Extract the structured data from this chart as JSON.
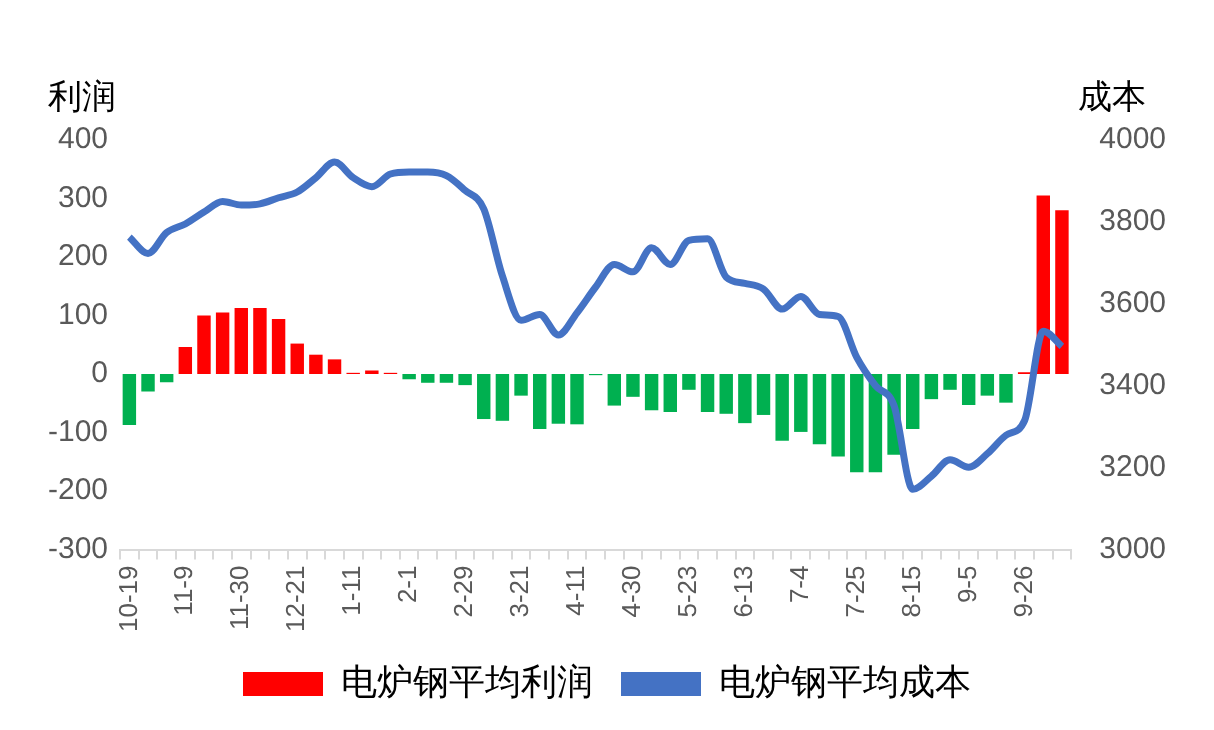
{
  "chart_data": {
    "type": "bar",
    "ylabel": "利润",
    "y2label": "成本",
    "categories": [
      "10-19",
      null,
      null,
      "11-9",
      null,
      null,
      "11-30",
      null,
      null,
      "12-21",
      null,
      null,
      "1-11",
      null,
      null,
      "2-1",
      null,
      null,
      "2-29",
      null,
      null,
      "3-21",
      null,
      null,
      "4-11",
      null,
      null,
      "4-30",
      null,
      null,
      "5-23",
      null,
      null,
      "6-13",
      null,
      null,
      "7-4",
      null,
      null,
      "7-25",
      null,
      null,
      "8-15",
      null,
      null,
      "9-5",
      null,
      null,
      "9-26",
      null,
      null
    ],
    "series": [
      {
        "name": "电炉钢平均利润",
        "color": "#ff0000",
        "colors": [
          "#00b050",
          "#00b050",
          "#00b050",
          "#ff0000",
          "#ff0000",
          "#ff0000",
          "#ff0000",
          "#ff0000",
          "#ff0000",
          "#ff0000",
          "#ff0000",
          "#ff0000",
          "#ff0000",
          "#ff0000",
          "#ff0000",
          "#00b050",
          "#00b050",
          "#00b050",
          "#00b050",
          "#00b050",
          "#00b050",
          "#00b050",
          "#00b050",
          "#00b050",
          "#00b050",
          "#00b050",
          "#00b050",
          "#00b050",
          "#00b050",
          "#00b050",
          "#00b050",
          "#00b050",
          "#00b050",
          "#00b050",
          "#00b050",
          "#00b050",
          "#00b050",
          "#00b050",
          "#00b050",
          "#00b050",
          "#00b050",
          "#00b050",
          "#00b050",
          "#00b050",
          "#00b050",
          "#00b050",
          "#00b050",
          "#00b050",
          "#ff0000",
          "#ff0000",
          "#ff0000"
        ],
        "values": [
          -87,
          -30,
          -14,
          46,
          100,
          105,
          113,
          113,
          94,
          52,
          33,
          25,
          2,
          6,
          2,
          -9,
          -15,
          -15,
          -19,
          -77,
          -80,
          -37,
          -94,
          -85,
          -86,
          -2,
          -54,
          -39,
          -62,
          -65,
          -27,
          -65,
          -68,
          -84,
          -70,
          -114,
          -99,
          -120,
          -141,
          -168,
          -168,
          -138,
          -94,
          -43,
          -27,
          -53,
          -37,
          -49,
          3,
          305,
          280
        ]
      },
      {
        "name": "电炉钢平均成本",
        "type": "line",
        "axis": "y2",
        "color": "#4472c4",
        "values": [
          3763,
          3723,
          3774,
          3795,
          3824,
          3850,
          3841,
          3844,
          3859,
          3873,
          3908,
          3946,
          3908,
          3886,
          3917,
          3922,
          3922,
          3913,
          3877,
          3832,
          3668,
          3560,
          3574,
          3524,
          3578,
          3641,
          3696,
          3678,
          3737,
          3696,
          3755,
          3759,
          3665,
          3650,
          3636,
          3587,
          3618,
          3574,
          3569,
          3469,
          3400,
          3351,
          3147,
          3179,
          3219,
          3201,
          3234,
          3279,
          3315,
          3533,
          3496
        ]
      }
    ],
    "ylim": [
      -300,
      400
    ],
    "yticks": [
      -300,
      -200,
      -100,
      0,
      100,
      200,
      300,
      400
    ],
    "y2lim": [
      3000,
      4000
    ],
    "y2ticks": [
      3000,
      3200,
      3400,
      3600,
      3800,
      4000
    ],
    "grid": false,
    "legend": "bottom",
    "marker": "none",
    "line_style": "solid"
  }
}
